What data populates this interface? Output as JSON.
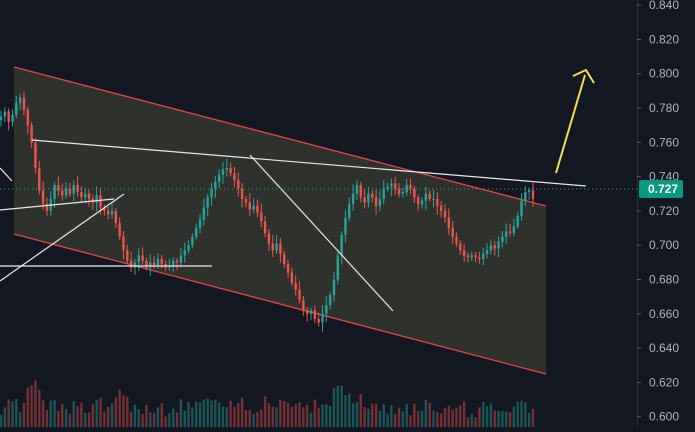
{
  "chart_data": {
    "type": "candlestick",
    "title": "",
    "xlabel": "",
    "ylabel": "",
    "ylim": [
      0.594,
      0.843
    ],
    "y_ticks": [
      "0.840",
      "0.820",
      "0.800",
      "0.780",
      "0.760",
      "0.740",
      "0.720",
      "0.700",
      "0.680",
      "0.660",
      "0.640",
      "0.620",
      "0.600"
    ],
    "current_price": "0.727",
    "grid": false,
    "colors": {
      "background": "#131722",
      "up": "#26a69a",
      "down": "#ef5350",
      "channel_line": "#e5474e",
      "channel_fill": "#3a3d31",
      "trend_line": "#ffffff",
      "arrow": "#f5e04a",
      "price_label": "#089981"
    },
    "close_path": [
      0.775,
      0.778,
      0.772,
      0.776,
      0.783,
      0.786,
      0.779,
      0.77,
      0.76,
      0.745,
      0.732,
      0.724,
      0.72,
      0.727,
      0.735,
      0.732,
      0.729,
      0.733,
      0.73,
      0.735,
      0.731,
      0.728,
      0.73,
      0.727,
      0.725,
      0.729,
      0.722,
      0.72,
      0.718,
      0.72,
      0.713,
      0.705,
      0.697,
      0.691,
      0.687,
      0.69,
      0.694,
      0.691,
      0.687,
      0.69,
      0.688,
      0.692,
      0.689,
      0.687,
      0.688,
      0.691,
      0.69,
      0.694,
      0.697,
      0.7,
      0.705,
      0.71,
      0.715,
      0.722,
      0.728,
      0.733,
      0.737,
      0.741,
      0.744,
      0.745,
      0.742,
      0.738,
      0.733,
      0.727,
      0.725,
      0.721,
      0.723,
      0.719,
      0.714,
      0.707,
      0.701,
      0.697,
      0.701,
      0.695,
      0.689,
      0.684,
      0.678,
      0.674,
      0.668,
      0.662,
      0.66,
      0.662,
      0.657,
      0.655,
      0.66,
      0.665,
      0.671,
      0.68,
      0.694,
      0.706,
      0.716,
      0.724,
      0.73,
      0.735,
      0.728,
      0.725,
      0.73,
      0.728,
      0.723,
      0.727,
      0.733,
      0.734,
      0.736,
      0.733,
      0.73,
      0.731,
      0.735,
      0.733,
      0.728,
      0.724,
      0.726,
      0.73,
      0.727,
      0.727,
      0.723,
      0.72,
      0.716,
      0.71,
      0.705,
      0.701,
      0.697,
      0.694,
      0.693,
      0.694,
      0.693,
      0.692,
      0.695,
      0.697,
      0.7,
      0.698,
      0.702,
      0.705,
      0.708,
      0.707,
      0.711,
      0.717,
      0.726,
      0.731,
      0.732,
      0.727
    ]
  }
}
